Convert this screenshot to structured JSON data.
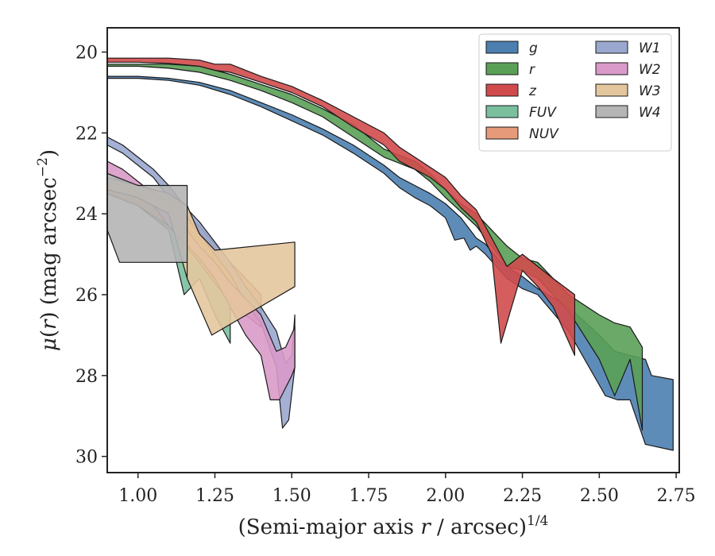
{
  "chart_data": {
    "type": "area",
    "xlabel": "(Semi-major axis r / arcsec)^{1/4}",
    "xlabel_parts": {
      "prefix": "(Semi-major axis ",
      "var": "r",
      "middle": " / arcsec)",
      "sup": "1/4"
    },
    "ylabel": "μ(r) (mag arcsec^-2)",
    "ylabel_parts": {
      "mu": "μ",
      "open": "(",
      "var": "r",
      "close": ") (mag arcsec",
      "sup": "−2",
      "end": ")"
    },
    "xlim": [
      0.9,
      2.76
    ],
    "ylim": [
      30.4,
      19.4
    ],
    "y_inverted": true,
    "xticks": [
      "1.00",
      "1.25",
      "1.50",
      "1.75",
      "2.00",
      "2.25",
      "2.50",
      "2.75"
    ],
    "yticks": [
      "20",
      "22",
      "24",
      "26",
      "28",
      "30"
    ],
    "legend": {
      "location": "upper right",
      "columns": 2
    },
    "series": [
      {
        "name": "g",
        "color": "#4c7fb0",
        "upper": [
          [
            0.9,
            20.6
          ],
          [
            1.0,
            20.6
          ],
          [
            1.1,
            20.65
          ],
          [
            1.2,
            20.75
          ],
          [
            1.3,
            20.95
          ],
          [
            1.4,
            21.25
          ],
          [
            1.5,
            21.55
          ],
          [
            1.6,
            21.9
          ],
          [
            1.7,
            22.3
          ],
          [
            1.8,
            22.8
          ],
          [
            1.85,
            23.1
          ],
          [
            1.9,
            23.3
          ],
          [
            1.95,
            23.5
          ],
          [
            2.0,
            23.75
          ],
          [
            2.05,
            24.1
          ],
          [
            2.08,
            24.4
          ],
          [
            2.1,
            24.6
          ],
          [
            2.13,
            24.75
          ],
          [
            2.18,
            25.2
          ],
          [
            2.25,
            25.55
          ],
          [
            2.3,
            25.85
          ],
          [
            2.4,
            26.3
          ],
          [
            2.5,
            27.0
          ],
          [
            2.55,
            27.4
          ],
          [
            2.65,
            27.6
          ],
          [
            2.67,
            28.0
          ],
          [
            2.74,
            28.1
          ]
        ],
        "lower": [
          [
            0.9,
            20.65
          ],
          [
            1.0,
            20.65
          ],
          [
            1.1,
            20.7
          ],
          [
            1.2,
            20.82
          ],
          [
            1.3,
            21.05
          ],
          [
            1.4,
            21.35
          ],
          [
            1.5,
            21.7
          ],
          [
            1.6,
            22.05
          ],
          [
            1.7,
            22.5
          ],
          [
            1.8,
            23.0
          ],
          [
            1.85,
            23.35
          ],
          [
            1.9,
            23.6
          ],
          [
            1.95,
            23.8
          ],
          [
            2.0,
            24.1
          ],
          [
            2.03,
            24.65
          ],
          [
            2.06,
            24.6
          ],
          [
            2.08,
            24.9
          ],
          [
            2.1,
            24.8
          ],
          [
            2.13,
            25.0
          ],
          [
            2.2,
            25.6
          ],
          [
            2.25,
            25.85
          ],
          [
            2.3,
            26.0
          ],
          [
            2.4,
            26.9
          ],
          [
            2.52,
            28.5
          ],
          [
            2.56,
            28.6
          ],
          [
            2.6,
            28.6
          ],
          [
            2.65,
            29.7
          ],
          [
            2.74,
            29.85
          ]
        ]
      },
      {
        "name": "r",
        "color": "#5aa057",
        "upper": [
          [
            0.9,
            20.3
          ],
          [
            1.0,
            20.3
          ],
          [
            1.1,
            20.3
          ],
          [
            1.2,
            20.35
          ],
          [
            1.3,
            20.55
          ],
          [
            1.4,
            20.8
          ],
          [
            1.5,
            21.05
          ],
          [
            1.6,
            21.4
          ],
          [
            1.7,
            21.8
          ],
          [
            1.8,
            22.4
          ],
          [
            1.85,
            22.55
          ],
          [
            1.9,
            22.7
          ],
          [
            1.95,
            23.0
          ],
          [
            2.0,
            23.4
          ],
          [
            2.05,
            23.75
          ],
          [
            2.1,
            24.0
          ],
          [
            2.2,
            24.8
          ],
          [
            2.25,
            25.1
          ],
          [
            2.3,
            25.2
          ],
          [
            2.4,
            26.0
          ],
          [
            2.5,
            26.5
          ],
          [
            2.55,
            26.7
          ],
          [
            2.6,
            26.8
          ],
          [
            2.64,
            27.3
          ]
        ],
        "lower": [
          [
            0.9,
            20.35
          ],
          [
            1.0,
            20.35
          ],
          [
            1.1,
            20.4
          ],
          [
            1.2,
            20.5
          ],
          [
            1.3,
            20.7
          ],
          [
            1.4,
            20.95
          ],
          [
            1.5,
            21.25
          ],
          [
            1.6,
            21.6
          ],
          [
            1.7,
            22.1
          ],
          [
            1.8,
            22.6
          ],
          [
            1.85,
            22.75
          ],
          [
            1.9,
            22.9
          ],
          [
            1.95,
            23.2
          ],
          [
            2.0,
            23.6
          ],
          [
            2.05,
            23.95
          ],
          [
            2.1,
            24.3
          ],
          [
            2.2,
            25.3
          ],
          [
            2.25,
            25.4
          ],
          [
            2.3,
            25.6
          ],
          [
            2.4,
            26.4
          ],
          [
            2.5,
            27.6
          ],
          [
            2.55,
            28.5
          ],
          [
            2.6,
            27.6
          ],
          [
            2.64,
            29.35
          ]
        ]
      },
      {
        "name": "z",
        "color": "#d14b4d",
        "upper": [
          [
            0.9,
            20.15
          ],
          [
            1.0,
            20.15
          ],
          [
            1.1,
            20.15
          ],
          [
            1.2,
            20.2
          ],
          [
            1.25,
            20.3
          ],
          [
            1.3,
            20.3
          ],
          [
            1.4,
            20.6
          ],
          [
            1.5,
            20.85
          ],
          [
            1.6,
            21.2
          ],
          [
            1.7,
            21.6
          ],
          [
            1.8,
            22.0
          ],
          [
            1.85,
            22.35
          ],
          [
            1.9,
            22.6
          ],
          [
            1.95,
            22.85
          ],
          [
            2.0,
            23.1
          ],
          [
            2.05,
            23.55
          ],
          [
            2.1,
            23.9
          ],
          [
            2.15,
            24.6
          ],
          [
            2.2,
            25.3
          ],
          [
            2.25,
            25.0
          ],
          [
            2.3,
            25.3
          ],
          [
            2.35,
            25.6
          ],
          [
            2.42,
            26.0
          ]
        ],
        "lower": [
          [
            0.9,
            20.25
          ],
          [
            1.0,
            20.25
          ],
          [
            1.1,
            20.28
          ],
          [
            1.2,
            20.35
          ],
          [
            1.25,
            20.45
          ],
          [
            1.3,
            20.5
          ],
          [
            1.4,
            20.75
          ],
          [
            1.5,
            21.0
          ],
          [
            1.6,
            21.35
          ],
          [
            1.7,
            21.85
          ],
          [
            1.8,
            22.3
          ],
          [
            1.85,
            22.7
          ],
          [
            1.9,
            22.9
          ],
          [
            1.95,
            23.1
          ],
          [
            2.0,
            23.4
          ],
          [
            2.05,
            23.85
          ],
          [
            2.1,
            24.2
          ],
          [
            2.15,
            25.0
          ],
          [
            2.18,
            27.2
          ],
          [
            2.25,
            25.4
          ],
          [
            2.3,
            25.8
          ],
          [
            2.35,
            26.3
          ],
          [
            2.42,
            27.5
          ]
        ]
      },
      {
        "name": "FUV",
        "color": "#7abf9e",
        "upper": [
          [
            0.9,
            23.1
          ],
          [
            1.0,
            23.3
          ],
          [
            1.1,
            23.6
          ],
          [
            1.15,
            24.2
          ],
          [
            1.2,
            24.6
          ],
          [
            1.25,
            25.0
          ],
          [
            1.3,
            25.8
          ]
        ],
        "lower": [
          [
            0.9,
            23.5
          ],
          [
            1.0,
            23.8
          ],
          [
            1.1,
            24.4
          ],
          [
            1.15,
            26.0
          ],
          [
            1.2,
            25.6
          ],
          [
            1.25,
            26.5
          ],
          [
            1.3,
            27.2
          ]
        ]
      },
      {
        "name": "NUV",
        "color": "#e79a7a",
        "upper": [
          [
            0.9,
            23.2
          ],
          [
            1.0,
            23.4
          ],
          [
            1.1,
            23.7
          ],
          [
            1.2,
            24.3
          ],
          [
            1.3,
            25.2
          ],
          [
            1.4,
            26.0
          ]
        ],
        "lower": [
          [
            0.9,
            23.5
          ],
          [
            1.0,
            23.8
          ],
          [
            1.1,
            24.3
          ],
          [
            1.2,
            25.2
          ],
          [
            1.3,
            26.2
          ],
          [
            1.4,
            26.8
          ]
        ]
      },
      {
        "name": "W1",
        "color": "#9aa8cf",
        "upper": [
          [
            0.9,
            22.1
          ],
          [
            0.95,
            22.3
          ],
          [
            1.0,
            22.6
          ],
          [
            1.05,
            22.9
          ],
          [
            1.1,
            23.3
          ],
          [
            1.15,
            23.8
          ],
          [
            1.2,
            24.2
          ],
          [
            1.25,
            24.7
          ],
          [
            1.3,
            25.2
          ],
          [
            1.35,
            25.8
          ],
          [
            1.4,
            26.3
          ],
          [
            1.45,
            26.9
          ],
          [
            1.48,
            27.7
          ],
          [
            1.5,
            27.5
          ],
          [
            1.51,
            26.5
          ]
        ],
        "lower": [
          [
            0.9,
            22.3
          ],
          [
            0.95,
            22.5
          ],
          [
            1.0,
            22.8
          ],
          [
            1.05,
            23.1
          ],
          [
            1.1,
            23.6
          ],
          [
            1.15,
            24.0
          ],
          [
            1.2,
            24.5
          ],
          [
            1.25,
            25.0
          ],
          [
            1.3,
            25.5
          ],
          [
            1.35,
            26.2
          ],
          [
            1.4,
            26.7
          ],
          [
            1.45,
            27.8
          ],
          [
            1.47,
            29.3
          ],
          [
            1.49,
            29.1
          ],
          [
            1.51,
            27.8
          ]
        ]
      },
      {
        "name": "W2",
        "color": "#d99ac9",
        "upper": [
          [
            0.9,
            22.7
          ],
          [
            0.95,
            22.9
          ],
          [
            1.0,
            23.2
          ],
          [
            1.05,
            23.5
          ],
          [
            1.1,
            23.9
          ],
          [
            1.15,
            24.3
          ],
          [
            1.2,
            24.8
          ],
          [
            1.25,
            25.2
          ],
          [
            1.3,
            25.7
          ],
          [
            1.35,
            26.1
          ],
          [
            1.4,
            26.5
          ],
          [
            1.45,
            27.4
          ],
          [
            1.48,
            27.3
          ],
          [
            1.51,
            26.8
          ]
        ],
        "lower": [
          [
            0.9,
            23.0
          ],
          [
            0.95,
            23.2
          ],
          [
            1.0,
            23.5
          ],
          [
            1.05,
            23.8
          ],
          [
            1.1,
            24.3
          ],
          [
            1.15,
            24.7
          ],
          [
            1.2,
            25.1
          ],
          [
            1.25,
            25.6
          ],
          [
            1.3,
            26.3
          ],
          [
            1.35,
            27.0
          ],
          [
            1.4,
            27.5
          ],
          [
            1.43,
            28.6
          ],
          [
            1.46,
            28.6
          ],
          [
            1.5,
            28.0
          ],
          [
            1.51,
            27.8
          ]
        ]
      },
      {
        "name": "W3",
        "color": "#e4c69e",
        "upper": [
          [
            0.9,
            23.1
          ],
          [
            1.0,
            23.3
          ],
          [
            1.1,
            23.5
          ],
          [
            1.16,
            23.8
          ],
          [
            1.2,
            24.5
          ],
          [
            1.25,
            24.9
          ],
          [
            1.51,
            24.7
          ]
        ],
        "lower": [
          [
            0.9,
            23.4
          ],
          [
            1.0,
            23.6
          ],
          [
            1.1,
            24.0
          ],
          [
            1.16,
            25.6
          ],
          [
            1.2,
            26.3
          ],
          [
            1.24,
            27.0
          ],
          [
            1.51,
            25.8
          ]
        ]
      },
      {
        "name": "W4",
        "color": "#b5b5b5",
        "upper": [
          [
            0.9,
            23.0
          ],
          [
            1.0,
            23.3
          ],
          [
            1.16,
            23.3
          ],
          [
            1.16,
            23.4
          ]
        ],
        "lower": [
          [
            0.9,
            24.4
          ],
          [
            0.94,
            25.2
          ],
          [
            1.16,
            25.2
          ],
          [
            1.16,
            25.6
          ]
        ]
      }
    ]
  }
}
